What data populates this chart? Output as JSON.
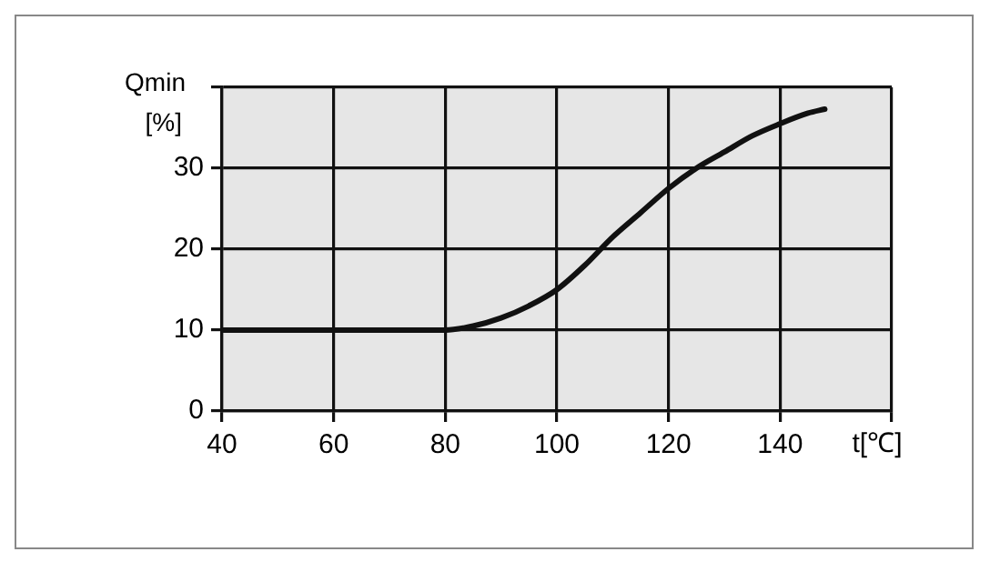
{
  "chart_data": {
    "type": "line",
    "xlabel": "t[℃]",
    "ylabel": "Qmin [%]",
    "x": [
      40,
      50,
      60,
      70,
      80,
      85,
      90,
      95,
      100,
      105,
      110,
      115,
      120,
      125,
      130,
      135,
      140,
      145,
      148
    ],
    "series": [
      {
        "color": "#111111",
        "values": [
          10,
          10,
          10,
          10,
          10,
          10.5,
          11.5,
          13,
          15,
          18,
          21.5,
          24.5,
          27.5,
          30,
          32,
          34,
          35.5,
          36.8,
          37.3
        ]
      }
    ],
    "xlim": [
      40,
      160
    ],
    "xticks": [
      40,
      60,
      80,
      100,
      120,
      140,
      {
        "value": 160,
        "label": null
      }
    ],
    "ylim": [
      0,
      40
    ],
    "yticks": [
      0,
      10,
      20,
      30,
      {
        "value": 40,
        "label": null
      }
    ],
    "grid": true,
    "legend": false,
    "marker": "none",
    "line_style": "solid"
  }
}
